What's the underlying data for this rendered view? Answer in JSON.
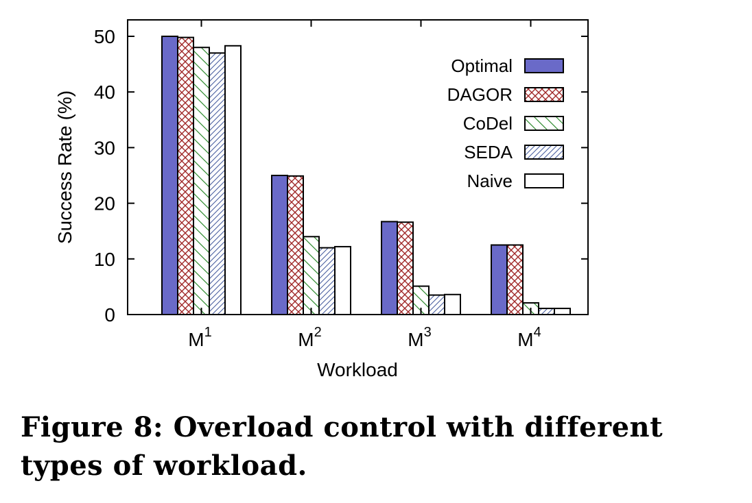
{
  "chart_data": {
    "type": "bar",
    "xlabel": "Workload",
    "ylabel": "Success Rate (%)",
    "ylim": [
      0,
      53
    ],
    "yticks": [
      0,
      10,
      20,
      30,
      40,
      50
    ],
    "grid": false,
    "legend_position": "top-right",
    "categories": [
      {
        "base": "M",
        "sup": "1"
      },
      {
        "base": "M",
        "sup": "2"
      },
      {
        "base": "M",
        "sup": "3"
      },
      {
        "base": "M",
        "sup": "4"
      }
    ],
    "series": [
      {
        "name": "Optimal",
        "pattern": "solid",
        "color": "#6a6ac8",
        "values": [
          50,
          25,
          16.7,
          12.5
        ]
      },
      {
        "name": "DAGOR",
        "pattern": "crosshatch",
        "color": "#a02828",
        "values": [
          49.8,
          24.9,
          16.6,
          12.5
        ]
      },
      {
        "name": "CoDel",
        "pattern": "backslash",
        "color": "#2e8b2e",
        "values": [
          48,
          14,
          5.1,
          2.1
        ]
      },
      {
        "name": "SEDA",
        "pattern": "forwardslash",
        "color": "#5a6fa8",
        "values": [
          47,
          12,
          3.5,
          1.1
        ]
      },
      {
        "name": "Naive",
        "pattern": "none",
        "color": "#ffffff",
        "values": [
          48.3,
          12.2,
          3.6,
          1.1
        ]
      }
    ]
  },
  "caption": "Figure 8: Overload control with different types of workload."
}
